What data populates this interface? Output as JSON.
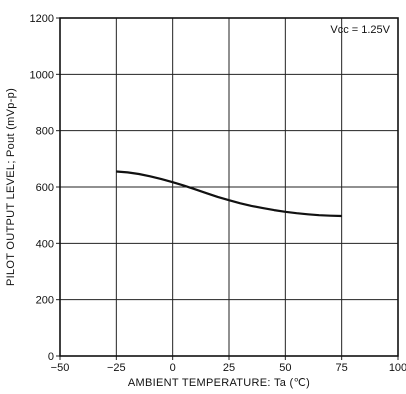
{
  "chart_data": {
    "type": "line",
    "xlabel": "AMBIENT TEMPERATURE: Ta (℃)",
    "ylabel": "PILOT OUTPUT LEVEL; Pout (mVp-p)",
    "xlim": [
      -50,
      100
    ],
    "ylim": [
      0,
      1200
    ],
    "x_ticks": [
      -50,
      -25,
      0,
      25,
      50,
      75,
      100
    ],
    "y_ticks": [
      0,
      200,
      400,
      600,
      800,
      1000,
      1200
    ],
    "x_tick_labels": [
      "−50",
      "−25",
      "0",
      "25",
      "50",
      "75",
      "100"
    ],
    "y_tick_labels": [
      "0",
      "200",
      "400",
      "600",
      "800",
      "1000",
      "1200"
    ],
    "grid": true,
    "annotation": "Vcc = 1.25V",
    "series": [
      {
        "x": [
          -25,
          -20,
          -15,
          -10,
          -5,
          0,
          5,
          10,
          15,
          20,
          25,
          30,
          35,
          40,
          45,
          50,
          55,
          60,
          65,
          70,
          75
        ],
        "y": [
          655,
          652,
          646,
          638,
          628,
          617,
          605,
          592,
          578,
          565,
          553,
          542,
          533,
          525,
          518,
          512,
          507,
          503,
          500,
          498,
          497
        ],
        "color": "#111111"
      }
    ]
  }
}
